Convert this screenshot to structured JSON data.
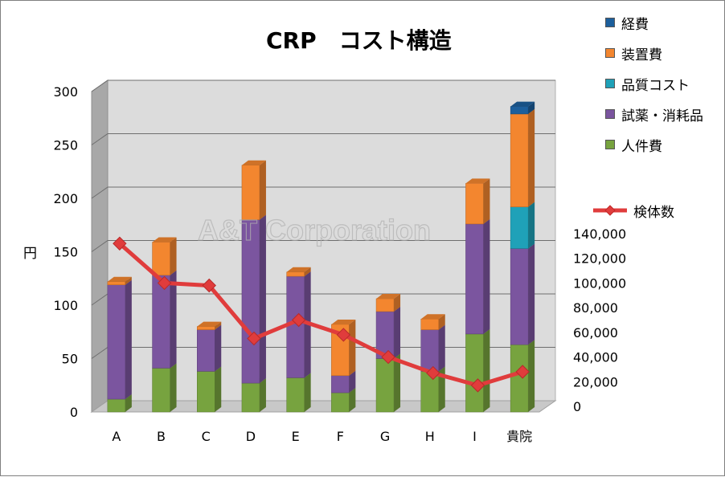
{
  "chart_data": {
    "type": "bar",
    "title": "CRP　コスト構造",
    "ylabel": "円",
    "ylim": [
      0,
      300
    ],
    "y_ticks": [
      "0",
      "50",
      "100",
      "150",
      "200",
      "250",
      "300"
    ],
    "categories": [
      "A",
      "B",
      "C",
      "D",
      "E",
      "F",
      "G",
      "H",
      "I",
      "貴院"
    ],
    "series": [
      {
        "name": "人件費",
        "color": "#77a33f",
        "values": [
          12,
          41,
          38,
          27,
          32,
          18,
          50,
          38,
          73,
          63
        ]
      },
      {
        "name": "試薬・消耗品",
        "color": "#7b559f",
        "values": [
          107,
          87,
          39,
          153,
          95,
          16,
          44,
          39,
          103,
          90
        ]
      },
      {
        "name": "品質コスト",
        "color": "#1fa1b8",
        "values": [
          0,
          0,
          0,
          0,
          0,
          0,
          0,
          0,
          0,
          39
        ]
      },
      {
        "name": "装置費",
        "color": "#f3862f",
        "values": [
          3,
          31,
          3,
          51,
          4,
          48,
          12,
          10,
          38,
          87
        ]
      },
      {
        "name": "経費",
        "color": "#1c5f9c",
        "values": [
          0,
          0,
          0,
          0,
          0,
          0,
          0,
          0,
          0,
          7
        ]
      }
    ],
    "line_series": {
      "name": "検体数",
      "color": "#e03c3c",
      "axis": "secondary",
      "ylim": [
        0,
        140000
      ],
      "y_ticks": [
        "0",
        "20,000",
        "40,000",
        "60,000",
        "80,000",
        "100,000",
        "120,000",
        "140,000"
      ],
      "values": [
        132000,
        100000,
        98000,
        55000,
        70000,
        58000,
        40000,
        27000,
        17000,
        28000
      ]
    },
    "legend_position": "right",
    "grid": true,
    "watermark": "A&T Corporation"
  }
}
